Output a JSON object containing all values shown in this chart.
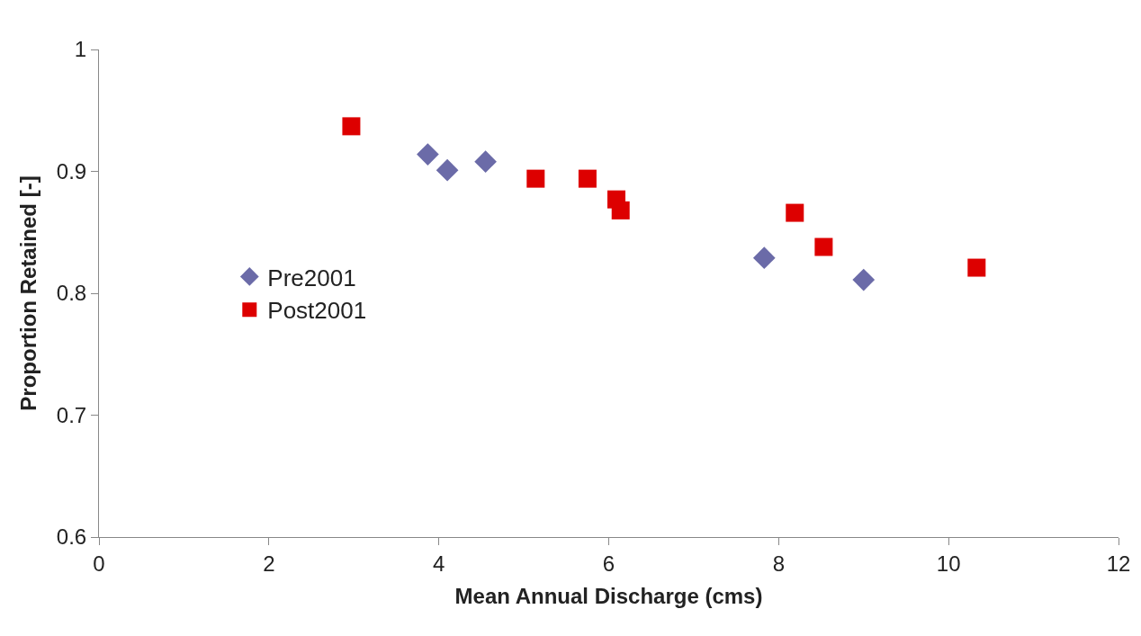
{
  "chart_data": {
    "type": "scatter",
    "xlabel": "Mean Annual Discharge (cms)",
    "ylabel": "Proportion Retained [-]",
    "xlim": [
      0,
      12
    ],
    "xticks": [
      0,
      2,
      4,
      6,
      8,
      10,
      12
    ],
    "ylim": [
      0.6,
      1
    ],
    "yticks": [
      0.6,
      0.7,
      0.8,
      0.9,
      1
    ],
    "legend": "left",
    "series": [
      {
        "name": "Pre2001",
        "color": "#6b6ba8",
        "marker": "diamond",
        "x": [
          3.87,
          4.1,
          4.55,
          6.03,
          7.83,
          9.0
        ],
        "values": [
          0.914,
          0.901,
          0.908,
          null,
          0.829,
          0.811
        ]
      },
      {
        "name": "Post2001",
        "color": "#dd0000",
        "marker": "square",
        "x": [
          2.97,
          5.14,
          5.75,
          6.09,
          6.14,
          8.19,
          8.53,
          10.33
        ],
        "values": [
          0.937,
          0.894,
          0.894,
          0.877,
          0.868,
          0.866,
          0.838,
          0.821
        ]
      }
    ]
  }
}
